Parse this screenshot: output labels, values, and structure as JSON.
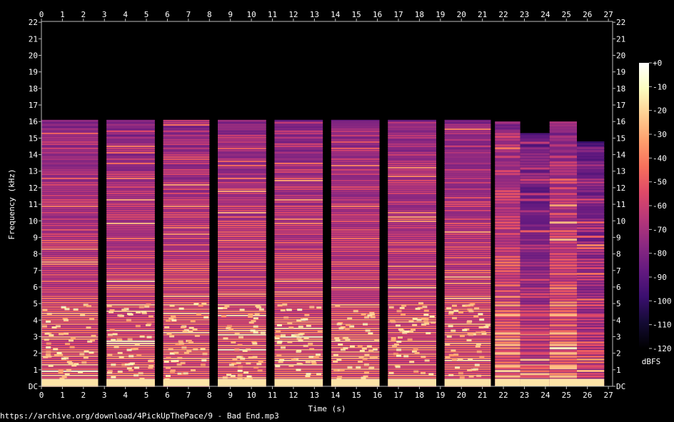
{
  "chart_data": {
    "type": "heatmap",
    "title": "",
    "xlabel": "Time (s)",
    "ylabel": "Frequency (kHz)",
    "xlim": [
      0,
      27.2
    ],
    "ylim": [
      0,
      22.05
    ],
    "x_ticks": [
      "0",
      "1",
      "2",
      "3",
      "4",
      "5",
      "6",
      "7",
      "8",
      "9",
      "10",
      "11",
      "12",
      "13",
      "14",
      "15",
      "16",
      "17",
      "18",
      "19",
      "20",
      "21",
      "22",
      "23",
      "24",
      "25",
      "26",
      "27"
    ],
    "y_ticks": [
      "DC",
      "1",
      "2",
      "3",
      "4",
      "5",
      "6",
      "7",
      "8",
      "9",
      "10",
      "11",
      "12",
      "13",
      "14",
      "15",
      "16",
      "17",
      "18",
      "19",
      "20",
      "21",
      "22"
    ],
    "colorbar": {
      "label": "dBFS",
      "range": [
        -120,
        0
      ],
      "ticks": [
        "+0",
        "-10",
        "-20",
        "-30",
        "-40",
        "-50",
        "-60",
        "-70",
        "-80",
        "-90",
        "-100",
        "-110",
        "-120"
      ],
      "colors": [
        "#000000",
        "#140b34",
        "#3b0f70",
        "#641a80",
        "#8c2981",
        "#b73779",
        "#de4968",
        "#f7705c",
        "#fe9f6d",
        "#fecf92",
        "#fcfdbf",
        "#ffffff"
      ]
    },
    "segments": [
      {
        "start": 0.0,
        "end": 2.7,
        "top_khz": 16.1,
        "kind": "music"
      },
      {
        "start": 3.1,
        "end": 5.4,
        "top_khz": 16.1,
        "kind": "music"
      },
      {
        "start": 5.8,
        "end": 8.0,
        "top_khz": 16.1,
        "kind": "music"
      },
      {
        "start": 8.4,
        "end": 10.7,
        "top_khz": 16.1,
        "kind": "music"
      },
      {
        "start": 11.1,
        "end": 13.4,
        "top_khz": 16.1,
        "kind": "music"
      },
      {
        "start": 13.8,
        "end": 16.1,
        "top_khz": 16.1,
        "kind": "music"
      },
      {
        "start": 16.5,
        "end": 18.8,
        "top_khz": 16.1,
        "kind": "music"
      },
      {
        "start": 19.2,
        "end": 21.4,
        "top_khz": 16.1,
        "kind": "music"
      },
      {
        "start": 21.6,
        "end": 22.8,
        "top_khz": 16.0,
        "kind": "tone"
      },
      {
        "start": 22.8,
        "end": 24.2,
        "top_khz": 15.3,
        "kind": "tone-dim"
      },
      {
        "start": 24.2,
        "end": 25.5,
        "top_khz": 16.0,
        "kind": "tone"
      },
      {
        "start": 25.5,
        "end": 26.8,
        "top_khz": 14.8,
        "kind": "tone-dim"
      }
    ]
  },
  "source_caption": "https://archive.org/download/4PickUpThePace/9 - Bad End.mp3"
}
